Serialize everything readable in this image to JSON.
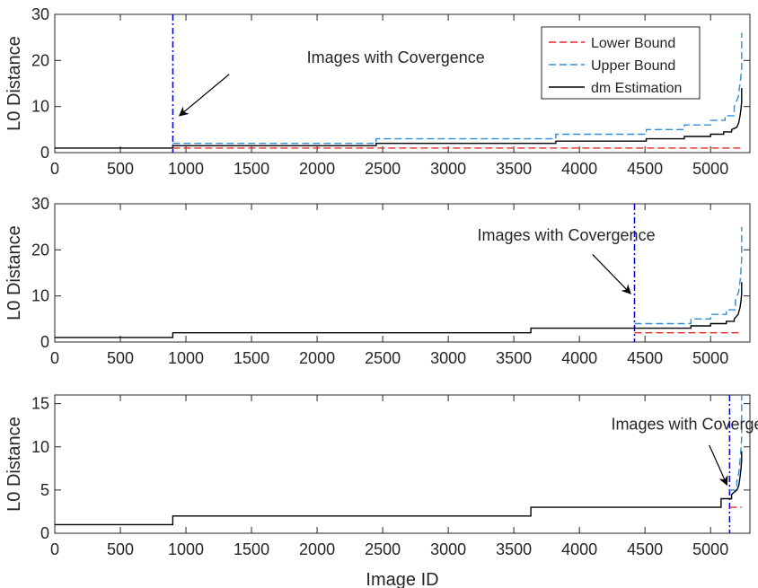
{
  "chart_data": [
    {
      "type": "line",
      "ylabel": "L0 Distance",
      "xlabel": "",
      "xlim": [
        0,
        5300
      ],
      "ylim": [
        0,
        30
      ],
      "xticks": [
        0,
        500,
        1000,
        1500,
        2000,
        2500,
        3000,
        3500,
        4000,
        4500,
        5000
      ],
      "yticks": [
        0,
        10,
        20,
        30
      ],
      "convergence_x": 900,
      "annotation": {
        "text": "Images with Covergence",
        "text_x": 2600,
        "text_y": 19.5,
        "arrow_from": [
          1330,
          17
        ],
        "arrow_to": [
          950,
          8
        ]
      },
      "legend": {
        "placement": "top-right",
        "entries": [
          "Lower Bound",
          "Upper Bound",
          "dm Estimation"
        ]
      },
      "series": [
        {
          "name": "Lower Bound",
          "style": "dashed",
          "color": "#e8272b",
          "x": [
            900,
            5237
          ],
          "y": [
            1,
            1
          ]
        },
        {
          "name": "Upper Bound",
          "style": "dashed",
          "color": "#2f8fd6",
          "x": [
            900,
            2450,
            2450,
            3820,
            3820,
            4510,
            4510,
            4800,
            4800,
            5000,
            5000,
            5110,
            5110,
            5180,
            5180,
            5210,
            5225,
            5237,
            5237
          ],
          "y": [
            2,
            2,
            3,
            3,
            4,
            4,
            5,
            5,
            6,
            6,
            7,
            7,
            8,
            8,
            10,
            12,
            15,
            18,
            26
          ]
        },
        {
          "name": "dm Estimation",
          "style": "solid",
          "color": "#000000",
          "x": [
            0,
            900,
            900,
            2450,
            2450,
            3820,
            3820,
            4510,
            4510,
            4800,
            4800,
            5000,
            5000,
            5100,
            5100,
            5160,
            5160,
            5200,
            5215,
            5225,
            5232,
            5237,
            5237
          ],
          "y": [
            1,
            1,
            1.5,
            1.5,
            2,
            2,
            2.5,
            2.5,
            3,
            3,
            3.5,
            3.5,
            4,
            4,
            4.5,
            4.5,
            5,
            5.5,
            6.5,
            8,
            9.5,
            11,
            14
          ]
        }
      ]
    },
    {
      "type": "line",
      "ylabel": "L0 Distance",
      "xlabel": "",
      "xlim": [
        0,
        5300
      ],
      "ylim": [
        0,
        30
      ],
      "xticks": [
        0,
        500,
        1000,
        1500,
        2000,
        2500,
        3000,
        3500,
        4000,
        4500,
        5000
      ],
      "yticks": [
        0,
        10,
        20,
        30
      ],
      "convergence_x": 4420,
      "annotation": {
        "text": "Images with Covergence",
        "text_x": 3900,
        "text_y": 22,
        "arrow_from": [
          4100,
          19
        ],
        "arrow_to": [
          4390,
          10.5
        ]
      },
      "series": [
        {
          "name": "Lower Bound",
          "style": "dashed",
          "color": "#e8272b",
          "x": [
            4420,
            5237
          ],
          "y": [
            2,
            2
          ]
        },
        {
          "name": "Upper Bound",
          "style": "dashed",
          "color": "#2f8fd6",
          "x": [
            4420,
            4850,
            4850,
            5000,
            5000,
            5120,
            5120,
            5190,
            5190,
            5215,
            5228,
            5237,
            5237
          ],
          "y": [
            4,
            4,
            5,
            5,
            6,
            6,
            7,
            7,
            9,
            11,
            14,
            18,
            25
          ]
        },
        {
          "name": "dm Estimation",
          "style": "solid",
          "color": "#000000",
          "x": [
            0,
            900,
            900,
            3630,
            3630,
            4420,
            4420,
            4850,
            4850,
            5000,
            5000,
            5120,
            5120,
            5180,
            5180,
            5210,
            5225,
            5232,
            5237,
            5237
          ],
          "y": [
            1,
            1,
            2,
            2,
            3,
            3,
            3,
            3,
            3.5,
            3.5,
            4,
            4,
            4.5,
            4.5,
            5,
            6,
            7.5,
            9,
            10.5,
            13
          ]
        }
      ]
    },
    {
      "type": "line",
      "ylabel": "L0 Distance",
      "xlabel": "Image ID",
      "xlim": [
        0,
        5300
      ],
      "ylim": [
        0,
        16
      ],
      "xticks": [
        0,
        500,
        1000,
        1500,
        2000,
        2500,
        3000,
        3500,
        4000,
        4500,
        5000
      ],
      "yticks": [
        0,
        5,
        10,
        15
      ],
      "convergence_x": 5145,
      "annotation": {
        "text": "Images with Covergence",
        "text_x": 4920,
        "text_y": 12,
        "arrow_from": [
          4990,
          10.2
        ],
        "arrow_to": [
          5125,
          5.6
        ]
      },
      "series": [
        {
          "name": "Lower Bound",
          "style": "dashed",
          "color": "#e8272b",
          "x": [
            5145,
            5237
          ],
          "y": [
            3,
            3
          ]
        },
        {
          "name": "Upper Bound",
          "style": "dashed",
          "color": "#2f8fd6",
          "x": [
            5145,
            5200,
            5200,
            5215,
            5228,
            5237,
            5237
          ],
          "y": [
            5,
            5,
            6,
            7,
            9,
            11,
            16
          ]
        },
        {
          "name": "dm Estimation",
          "style": "solid",
          "color": "#000000",
          "x": [
            0,
            900,
            900,
            3630,
            3630,
            5080,
            5080,
            5160,
            5160,
            5200,
            5215,
            5225,
            5232,
            5237,
            5237
          ],
          "y": [
            1,
            1,
            2,
            2,
            3,
            3,
            4,
            4,
            4.5,
            5,
            5.5,
            6.5,
            7.5,
            8.5,
            9.5
          ]
        }
      ]
    }
  ]
}
